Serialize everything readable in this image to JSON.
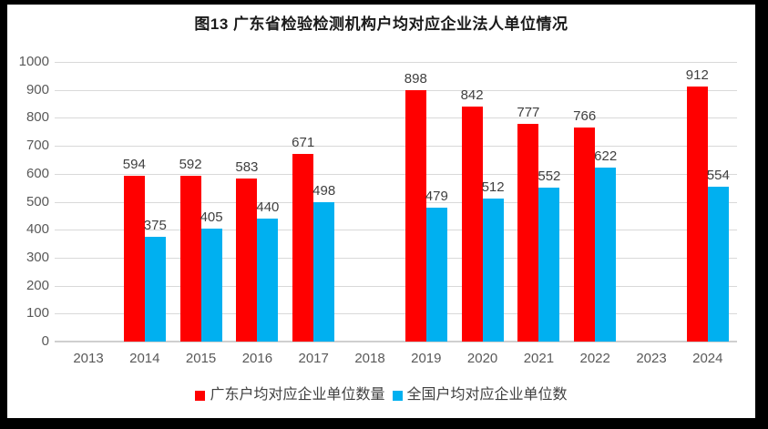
{
  "chart_data": {
    "type": "bar",
    "title": "图13 广东省检验检测机构户均对应企业法人单位情况",
    "categories": [
      "2013",
      "2014",
      "2015",
      "2016",
      "2017",
      "2018",
      "2019",
      "2020",
      "2021",
      "2022",
      "2023",
      "2024"
    ],
    "series": [
      {
        "name": "广东户均对应企业单位数量",
        "color": "#ff0000",
        "values": [
          null,
          594,
          592,
          583,
          671,
          null,
          898,
          842,
          777,
          766,
          null,
          912
        ]
      },
      {
        "name": "全国户均对应企业单位数",
        "color": "#00b0f0",
        "values": [
          null,
          375,
          405,
          440,
          498,
          null,
          479,
          512,
          552,
          622,
          null,
          554
        ]
      }
    ],
    "ylim": [
      0,
      1000
    ],
    "yticks": [
      0,
      100,
      200,
      300,
      400,
      500,
      600,
      700,
      800,
      900,
      1000
    ],
    "grid": true,
    "legend_position": "bottom",
    "xlabel": "",
    "ylabel": "",
    "styles": {
      "gridline_color": "#d9d9d9",
      "axis_line_color": "#cfcfcf",
      "tick_label_color": "#595959",
      "data_label_color": "#3f3f3f",
      "title_color": "#1a1a1a",
      "legend_text_color": "#404040",
      "background": "#ffffff",
      "frame_color": "#000000"
    }
  }
}
